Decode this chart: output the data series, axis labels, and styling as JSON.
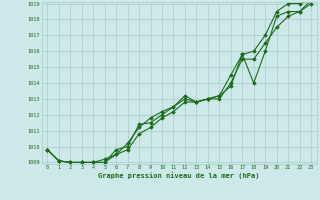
{
  "xlabel": "Graphe pression niveau de la mer (hPa)",
  "x": [
    0,
    1,
    2,
    3,
    4,
    5,
    6,
    7,
    8,
    9,
    10,
    11,
    12,
    13,
    14,
    15,
    16,
    17,
    18,
    19,
    20,
    21,
    22,
    23
  ],
  "line1": [
    1009.8,
    1009.1,
    1009.0,
    1009.0,
    1009.0,
    1009.0,
    1009.5,
    1009.8,
    1010.8,
    1011.2,
    1011.8,
    1012.2,
    1012.8,
    1012.8,
    1013.0,
    1013.0,
    1014.0,
    1015.5,
    1015.5,
    1016.5,
    1017.5,
    1018.2,
    1018.5,
    1019.0
  ],
  "line2": [
    1009.8,
    1009.1,
    1009.0,
    1009.0,
    1009.0,
    1009.0,
    1009.8,
    1010.0,
    1011.4,
    1011.5,
    1012.0,
    1012.5,
    1013.2,
    1012.8,
    1013.0,
    1013.2,
    1013.8,
    1015.8,
    1014.0,
    1016.0,
    1018.2,
    1018.5,
    1018.5,
    1019.2
  ],
  "line3": [
    1009.8,
    1009.1,
    1009.0,
    1009.0,
    1009.0,
    1009.2,
    1009.5,
    1010.2,
    1011.2,
    1011.8,
    1012.2,
    1012.5,
    1013.0,
    1012.8,
    1013.0,
    1013.2,
    1014.5,
    1015.8,
    1016.0,
    1017.0,
    1018.5,
    1019.0,
    1019.0,
    1019.2
  ],
  "ylim_min": 1009,
  "ylim_max": 1019,
  "yticks": [
    1009,
    1010,
    1011,
    1012,
    1013,
    1014,
    1015,
    1016,
    1017,
    1018,
    1019
  ],
  "xticks": [
    0,
    1,
    2,
    3,
    4,
    5,
    6,
    7,
    8,
    9,
    10,
    11,
    12,
    13,
    14,
    15,
    16,
    17,
    18,
    19,
    20,
    21,
    22,
    23
  ],
  "line_color": "#1a6b1a",
  "bg_color": "#cce8e8",
  "grid_color": "#aacccc",
  "xlabel_color": "#1a6b1a",
  "tick_color": "#1a6b1a",
  "marker": "D",
  "marker_size": 1.8,
  "line_width": 0.8
}
